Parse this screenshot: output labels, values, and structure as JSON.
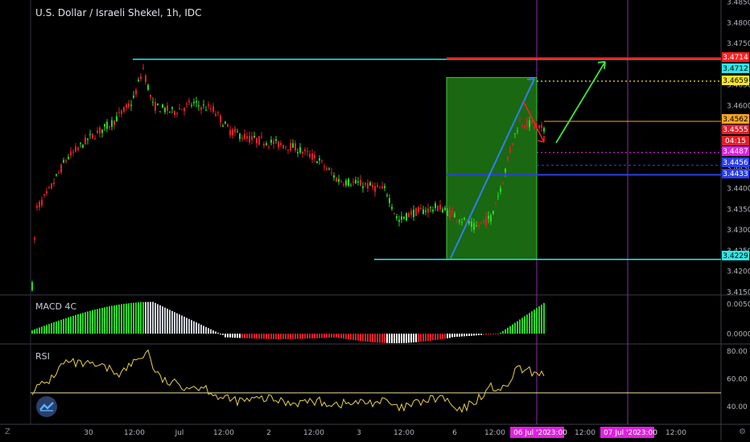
{
  "header": {
    "title": "U.S. Dollar / Israeli Shekel, 1h, IDC"
  },
  "panels": {
    "macd_label": "MACD 4C",
    "rsi_label": "RSI"
  },
  "corner": {
    "left": "Z",
    "right": "⚙"
  },
  "colors": {
    "background": "#000000",
    "up": "#26d926",
    "down": "#e0202a",
    "cyan": "#2ee6e6",
    "red_level": "#ff2020",
    "yellow": "#f5e52a",
    "orange": "#f5a623",
    "magenta": "#e020e0",
    "blue": "#2a3fe8",
    "green_box": "#1e7a14",
    "rsi_line": "#e8d24a",
    "session": "#8a2ea8"
  },
  "chart_data": {
    "type": "candlestick",
    "title": "U.S. Dollar / Israeli Shekel, 1h, IDC",
    "x_tick_labels": [
      "30",
      "12:00",
      "Jul",
      "12:00",
      "2",
      "12:00",
      "3",
      "12:00",
      "6",
      "12:00",
      "12:00",
      "12:00"
    ],
    "x_highlight_labels": [
      "06 Jul '20",
      "23:00",
      "07 Jul '20",
      "23:00"
    ],
    "price_axis": {
      "range": [
        3.4145,
        3.4855
      ],
      "ticks": [
        "3.4850",
        "3.4800",
        "3.4750",
        "3.4650",
        "3.4600",
        "3.4450",
        "3.4400",
        "3.4350",
        "3.4300",
        "3.4250",
        "3.4200",
        "3.4150"
      ]
    },
    "levels": [
      {
        "label": "3.4714",
        "value": 3.4714,
        "color": "#ff2020",
        "style": "solid"
      },
      {
        "label": "3.4712",
        "value": 3.4712,
        "color": "#2ee6e6",
        "style": "solid"
      },
      {
        "label": "3.4659",
        "value": 3.4659,
        "color": "#f5e52a",
        "style": "dotted"
      },
      {
        "label": "3.4562",
        "value": 3.4562,
        "color": "#f5a623",
        "style": "solid"
      },
      {
        "label": "3.4555",
        "value": 3.4555,
        "color": "#e0202a",
        "style": "tag"
      },
      {
        "label": "04:15",
        "value": 3.4542,
        "color": "#e0202a",
        "style": "tag"
      },
      {
        "label": "3.4487",
        "value": 3.4487,
        "color": "#e020e0",
        "style": "dotted"
      },
      {
        "label": "3.4456",
        "value": 3.4456,
        "color": "#2a3fe8",
        "style": "dashed"
      },
      {
        "label": "3.4433",
        "value": 3.4433,
        "color": "#2a3fe8",
        "style": "solid"
      },
      {
        "label": "3.4229",
        "value": 3.4229,
        "color": "#2ee6e6",
        "style": "solid"
      }
    ],
    "projection_box": {
      "price_low": 3.4229,
      "price_high": 3.4668
    },
    "macd": {
      "label": "MACD 4C",
      "axis_ticks": [
        "0.0050",
        "0.0000"
      ],
      "range": [
        -0.0016,
        0.0063
      ]
    },
    "rsi": {
      "label": "RSI",
      "axis_ticks": [
        "80.00",
        "60.00",
        "40.00"
      ],
      "range": [
        28,
        84
      ],
      "band_level": 50
    }
  }
}
